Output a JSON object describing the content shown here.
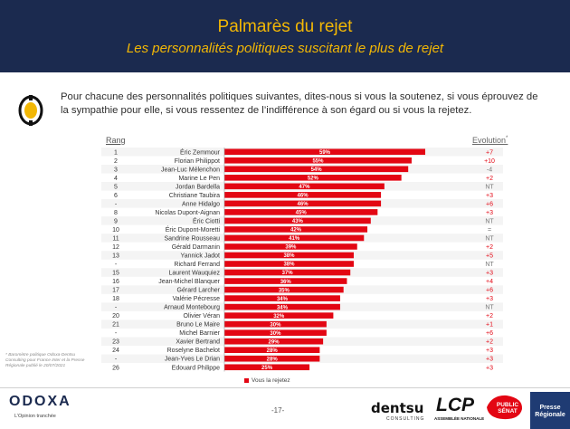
{
  "header": {
    "title": "Palmarès du rejet",
    "subtitle": "Les personnalités politiques suscitant le plus de rejet"
  },
  "question": "Pour chacune des personnalités politiques suivantes, dites-nous si vous la soutenez, si vous éprouvez de la sympathie pour elle, si vous ressentez de l’indifférence à son égard ou si vous la rejetez.",
  "columns": {
    "rank": "Rang",
    "evolution": "Evolution",
    "evolution_mark": "*"
  },
  "legend": {
    "label": "Vous la rejetez"
  },
  "footnote": "* Baromètre politique Odoxa-Dentsu Consulting pour France Inter et la Presse Régionale publié le 20/07/2021",
  "footer": {
    "brand": "ODOXA",
    "tagline": "L’Opinion tranchée",
    "page": "-17-",
    "partners": [
      "dentsu",
      "CONSULTING",
      "LCP",
      "ASSEMBLÉE NATIONALE",
      "PUBLIC SÉNAT",
      "Presse Régionale"
    ]
  },
  "colors": {
    "header_bg": "#1b2a4f",
    "title": "#f2b705",
    "bar": "#e30613",
    "evo_positive": "#e30613",
    "evo_neutral": "#777777"
  },
  "chart_data": {
    "type": "bar",
    "orientation": "horizontal",
    "xlim": [
      0,
      59
    ],
    "series": [
      {
        "name": "Vous la rejetez",
        "unit": "%"
      }
    ],
    "rows": [
      {
        "rank": "1",
        "name": "Éric Zemmour",
        "value": 59,
        "evolution": "+7"
      },
      {
        "rank": "2",
        "name": "Florian Philippot",
        "value": 55,
        "evolution": "+10"
      },
      {
        "rank": "3",
        "name": "Jean-Luc Mélenchon",
        "value": 54,
        "evolution": "-4"
      },
      {
        "rank": "4",
        "name": "Marine Le Pen",
        "value": 52,
        "evolution": "+2"
      },
      {
        "rank": "5",
        "name": "Jordan Bardella",
        "value": 47,
        "evolution": "NT"
      },
      {
        "rank": "6",
        "name": "Christiane Taubira",
        "value": 46,
        "evolution": "+3"
      },
      {
        "rank": "-",
        "name": "Anne Hidalgo",
        "value": 46,
        "evolution": "+6"
      },
      {
        "rank": "8",
        "name": "Nicolas Dupont-Aignan",
        "value": 45,
        "evolution": "+3"
      },
      {
        "rank": "9",
        "name": "Éric Ciotti",
        "value": 43,
        "evolution": "NT"
      },
      {
        "rank": "10",
        "name": "Éric Dupont-Moretti",
        "value": 42,
        "evolution": "="
      },
      {
        "rank": "11",
        "name": "Sandrine Rousseau",
        "value": 41,
        "evolution": "NT"
      },
      {
        "rank": "12",
        "name": "Gérald Darmanin",
        "value": 39,
        "evolution": "+2"
      },
      {
        "rank": "13",
        "name": "Yannick Jadot",
        "value": 38,
        "evolution": "+5"
      },
      {
        "rank": "-",
        "name": "Richard Ferrand",
        "value": 38,
        "evolution": "NT"
      },
      {
        "rank": "15",
        "name": "Laurent Wauquiez",
        "value": 37,
        "evolution": "+3"
      },
      {
        "rank": "16",
        "name": "Jean-Michel Blanquer",
        "value": 36,
        "evolution": "+4"
      },
      {
        "rank": "17",
        "name": "Gérard Larcher",
        "value": 35,
        "evolution": "+6"
      },
      {
        "rank": "18",
        "name": "Valérie Pécresse",
        "value": 34,
        "evolution": "+3"
      },
      {
        "rank": "-",
        "name": "Arnaud Montebourg",
        "value": 34,
        "evolution": "NT"
      },
      {
        "rank": "20",
        "name": "Olivier Véran",
        "value": 32,
        "evolution": "+2"
      },
      {
        "rank": "21",
        "name": "Bruno Le Maire",
        "value": 30,
        "evolution": "+1"
      },
      {
        "rank": "-",
        "name": "Michel Barnier",
        "value": 30,
        "evolution": "+6"
      },
      {
        "rank": "23",
        "name": "Xavier Bertrand",
        "value": 29,
        "evolution": "+2"
      },
      {
        "rank": "24",
        "name": "Roselyne Bachelot",
        "value": 28,
        "evolution": "+3"
      },
      {
        "rank": "-",
        "name": "Jean-Yves Le Drian",
        "value": 28,
        "evolution": "+3"
      },
      {
        "rank": "26",
        "name": "Edouard Philippe",
        "value": 25,
        "evolution": "+3"
      }
    ]
  }
}
